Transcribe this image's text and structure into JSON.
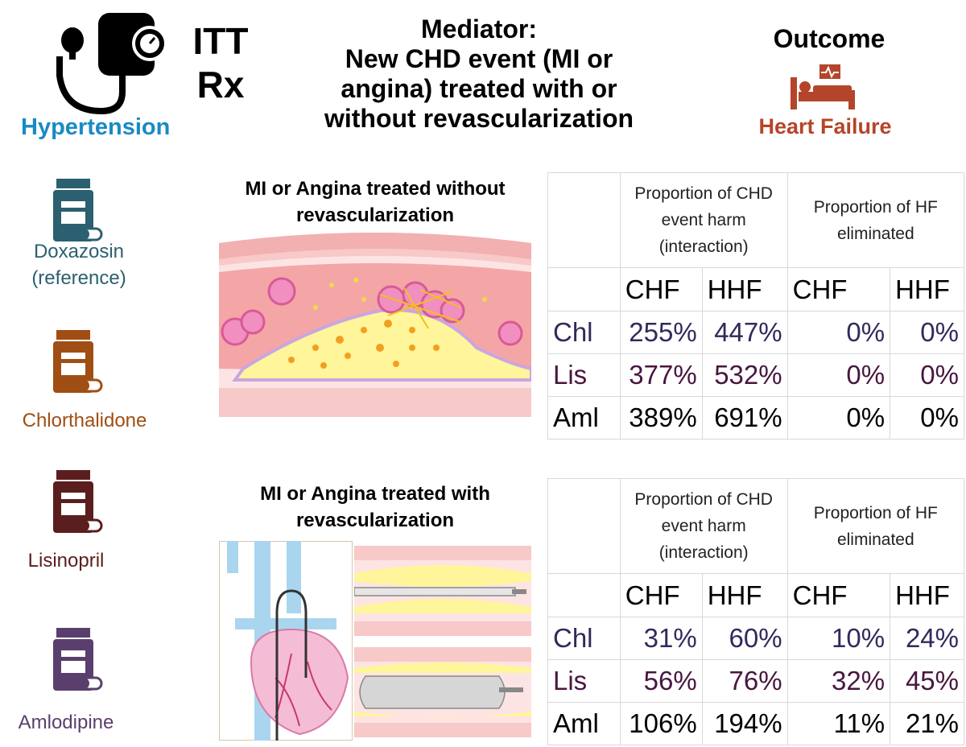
{
  "header": {
    "itt_line1": "ITT",
    "itt_line2": "Rx",
    "mediator_lines": [
      "Mediator:",
      "New CHD event (MI or",
      "angina) treated with or",
      "without revascularization"
    ],
    "outcome_title": "Outcome",
    "exposure_label": "Hypertension",
    "outcome_label": "Heart Failure"
  },
  "drugs": [
    {
      "name_lines": [
        "Doxazosin",
        "(reference)"
      ],
      "color": "#2b6070",
      "icon": "pill-bottle-icon"
    },
    {
      "name_lines": [
        "Chlorthalidone"
      ],
      "color": "#a04e14",
      "icon": "pill-bottle-icon"
    },
    {
      "name_lines": [
        "Lisinopril"
      ],
      "color": "#5b1e1e",
      "icon": "pill-bottle-icon"
    },
    {
      "name_lines": [
        "Amlodipine"
      ],
      "color": "#5a3f6e",
      "icon": "pill-bottle-icon"
    }
  ],
  "colors": {
    "hypertension": "#1a8ac4",
    "heart_failure": "#b5452a"
  },
  "sections": [
    {
      "title_lines": [
        "MI or Angina treated without",
        "revascularization"
      ],
      "table": {
        "group_headers": [
          [
            "Proportion of CHD",
            "event harm",
            "(interaction)"
          ],
          [
            "Proportion of HF",
            "eliminated"
          ]
        ],
        "subheaders": [
          "CHF",
          "HHF",
          "CHF",
          "HHF"
        ],
        "rows": [
          {
            "label": "Chl",
            "values": [
              "255%",
              "447%",
              "0%",
              "0%"
            ]
          },
          {
            "label": "Lis",
            "values": [
              "377%",
              "532%",
              "0%",
              "0%"
            ]
          },
          {
            "label": "Aml",
            "values": [
              "389%",
              "691%",
              "0%",
              "0%"
            ]
          }
        ]
      }
    },
    {
      "title_lines": [
        "MI or Angina treated with",
        "revascularization"
      ],
      "table": {
        "group_headers": [
          [
            "Proportion of CHD",
            "event harm",
            "(interaction)"
          ],
          [
            "Proportion of HF",
            "eliminated"
          ]
        ],
        "subheaders": [
          "CHF",
          "HHF",
          "CHF",
          "HHF"
        ],
        "rows": [
          {
            "label": "Chl",
            "values": [
              "31%",
              "60%",
              "10%",
              "24%"
            ]
          },
          {
            "label": "Lis",
            "values": [
              "56%",
              "76%",
              "32%",
              "45%"
            ]
          },
          {
            "label": "Aml",
            "values": [
              "106%",
              "194%",
              "11%",
              "21%"
            ]
          }
        ]
      }
    }
  ]
}
